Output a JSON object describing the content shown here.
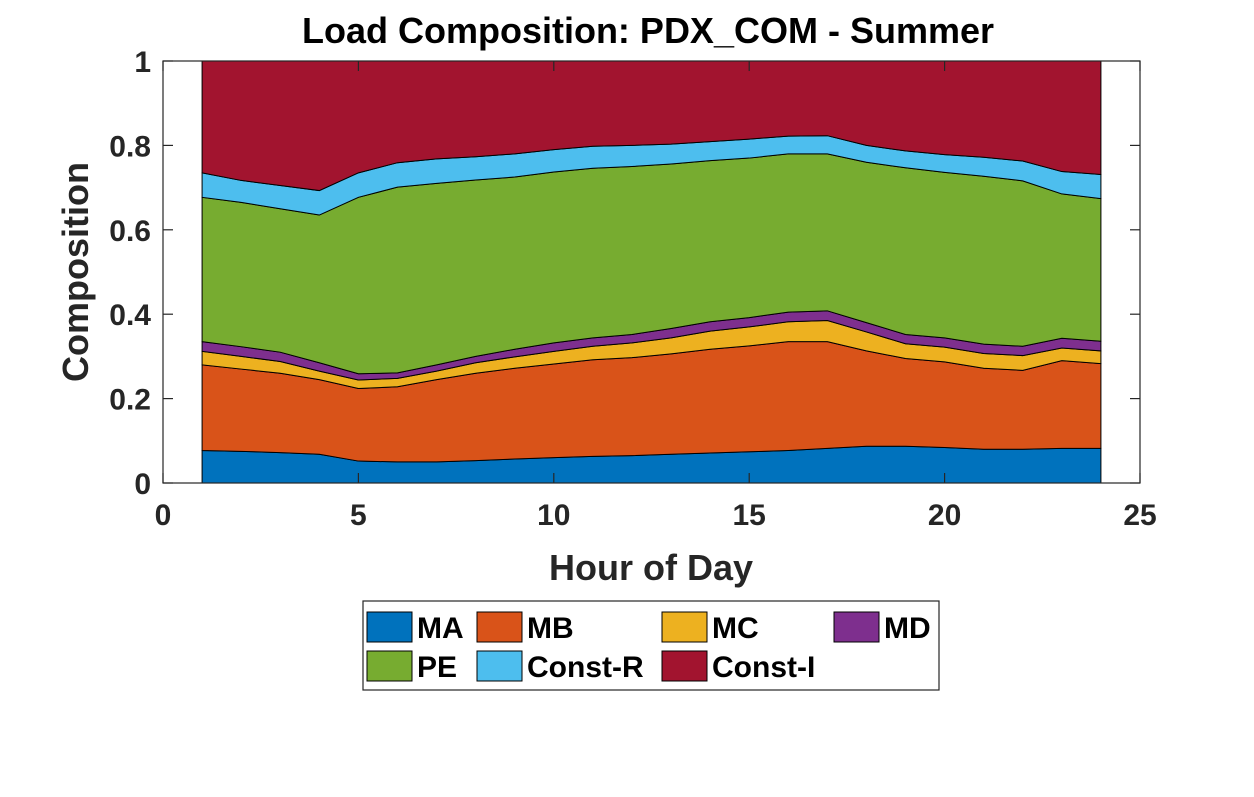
{
  "chart_data": {
    "type": "area",
    "stacked": true,
    "title": "Load Composition: PDX_COM - Summer",
    "xlabel": "Hour of Day",
    "ylabel": "Composition",
    "xlim": [
      0,
      25
    ],
    "ylim": [
      0,
      1
    ],
    "xticks": [
      "0",
      "5",
      "10",
      "15",
      "20",
      "25"
    ],
    "yticks": [
      "0",
      "0.2",
      "0.4",
      "0.6",
      "0.8",
      "1"
    ],
    "legend_position": "bottom-outside",
    "x": [
      1,
      2,
      3,
      4,
      5,
      6,
      7,
      8,
      9,
      10,
      11,
      12,
      13,
      14,
      15,
      16,
      17,
      18,
      19,
      20,
      21,
      22,
      23,
      24
    ],
    "series": [
      {
        "name": "MA",
        "color": "#0072BD",
        "values": [
          0.077,
          0.075,
          0.072,
          0.068,
          0.052,
          0.05,
          0.05,
          0.053,
          0.057,
          0.06,
          0.063,
          0.065,
          0.068,
          0.071,
          0.074,
          0.077,
          0.082,
          0.087,
          0.087,
          0.084,
          0.08,
          0.08,
          0.082,
          0.082
        ]
      },
      {
        "name": "MB",
        "color": "#D95319",
        "values": [
          0.203,
          0.195,
          0.188,
          0.177,
          0.172,
          0.178,
          0.195,
          0.207,
          0.215,
          0.222,
          0.229,
          0.232,
          0.238,
          0.246,
          0.251,
          0.258,
          0.253,
          0.226,
          0.208,
          0.203,
          0.192,
          0.187,
          0.208,
          0.201
        ]
      },
      {
        "name": "MC",
        "color": "#EDB120",
        "values": [
          0.032,
          0.03,
          0.028,
          0.02,
          0.02,
          0.02,
          0.02,
          0.025,
          0.027,
          0.03,
          0.032,
          0.035,
          0.038,
          0.043,
          0.045,
          0.047,
          0.05,
          0.045,
          0.035,
          0.035,
          0.035,
          0.035,
          0.03,
          0.03
        ]
      },
      {
        "name": "MD",
        "color": "#7E2F8E",
        "values": [
          0.023,
          0.023,
          0.022,
          0.02,
          0.015,
          0.013,
          0.015,
          0.015,
          0.018,
          0.02,
          0.02,
          0.02,
          0.022,
          0.022,
          0.022,
          0.023,
          0.023,
          0.022,
          0.022,
          0.022,
          0.022,
          0.022,
          0.023,
          0.023
        ]
      },
      {
        "name": "PE",
        "color": "#77AC30",
        "values": [
          0.342,
          0.342,
          0.34,
          0.35,
          0.418,
          0.44,
          0.43,
          0.418,
          0.408,
          0.405,
          0.402,
          0.398,
          0.39,
          0.382,
          0.378,
          0.375,
          0.372,
          0.38,
          0.395,
          0.392,
          0.398,
          0.392,
          0.342,
          0.338
        ]
      },
      {
        "name": "Const-R",
        "color": "#4DBEEE",
        "values": [
          0.058,
          0.052,
          0.055,
          0.058,
          0.058,
          0.058,
          0.058,
          0.055,
          0.055,
          0.053,
          0.052,
          0.05,
          0.047,
          0.045,
          0.045,
          0.042,
          0.043,
          0.04,
          0.04,
          0.042,
          0.045,
          0.047,
          0.053,
          0.057
        ]
      },
      {
        "name": "Const-I",
        "color": "#A2142F",
        "values": [
          0.265,
          0.283,
          0.295,
          0.307,
          0.265,
          0.241,
          0.232,
          0.227,
          0.22,
          0.21,
          0.202,
          0.2,
          0.197,
          0.191,
          0.185,
          0.178,
          0.177,
          0.2,
          0.213,
          0.222,
          0.228,
          0.237,
          0.262,
          0.269
        ]
      }
    ]
  }
}
